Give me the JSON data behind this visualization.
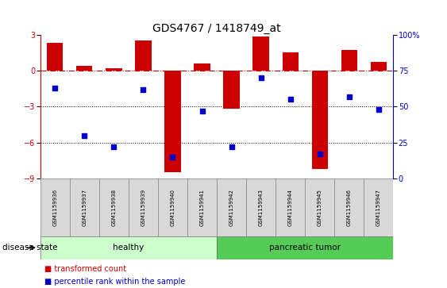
{
  "title": "GDS4767 / 1418749_at",
  "samples": [
    "GSM1159936",
    "GSM1159937",
    "GSM1159938",
    "GSM1159939",
    "GSM1159940",
    "GSM1159941",
    "GSM1159942",
    "GSM1159943",
    "GSM1159944",
    "GSM1159945",
    "GSM1159946",
    "GSM1159947"
  ],
  "transformed_count": [
    2.3,
    0.4,
    0.2,
    2.5,
    -8.5,
    0.6,
    -3.2,
    2.85,
    1.5,
    -8.2,
    1.7,
    0.7
  ],
  "percentile_rank": [
    63,
    30,
    22,
    62,
    15,
    47,
    22,
    70,
    55,
    17,
    57,
    48
  ],
  "disease_groups": [
    {
      "label": "healthy",
      "start": 0,
      "end": 5,
      "color": "#ccffcc"
    },
    {
      "label": "pancreatic tumor",
      "start": 6,
      "end": 11,
      "color": "#55cc55"
    }
  ],
  "bar_color": "#cc0000",
  "dot_color": "#0000cc",
  "ylim_left": [
    -9,
    3
  ],
  "ylim_right": [
    0,
    100
  ],
  "yticks_left": [
    -9,
    -6,
    -3,
    0,
    3
  ],
  "yticks_right": [
    0,
    25,
    50,
    75,
    100
  ],
  "ytick_right_labels": [
    "0",
    "25",
    "50",
    "75",
    "100%"
  ],
  "dotted_lines": [
    -3,
    -6
  ],
  "background_color": "#ffffff",
  "bar_width": 0.55,
  "legend_items": [
    {
      "label": "transformed count",
      "color": "#cc0000"
    },
    {
      "label": "percentile rank within the sample",
      "color": "#0000cc"
    }
  ],
  "disease_state_label": "disease state",
  "title_fontsize": 10
}
